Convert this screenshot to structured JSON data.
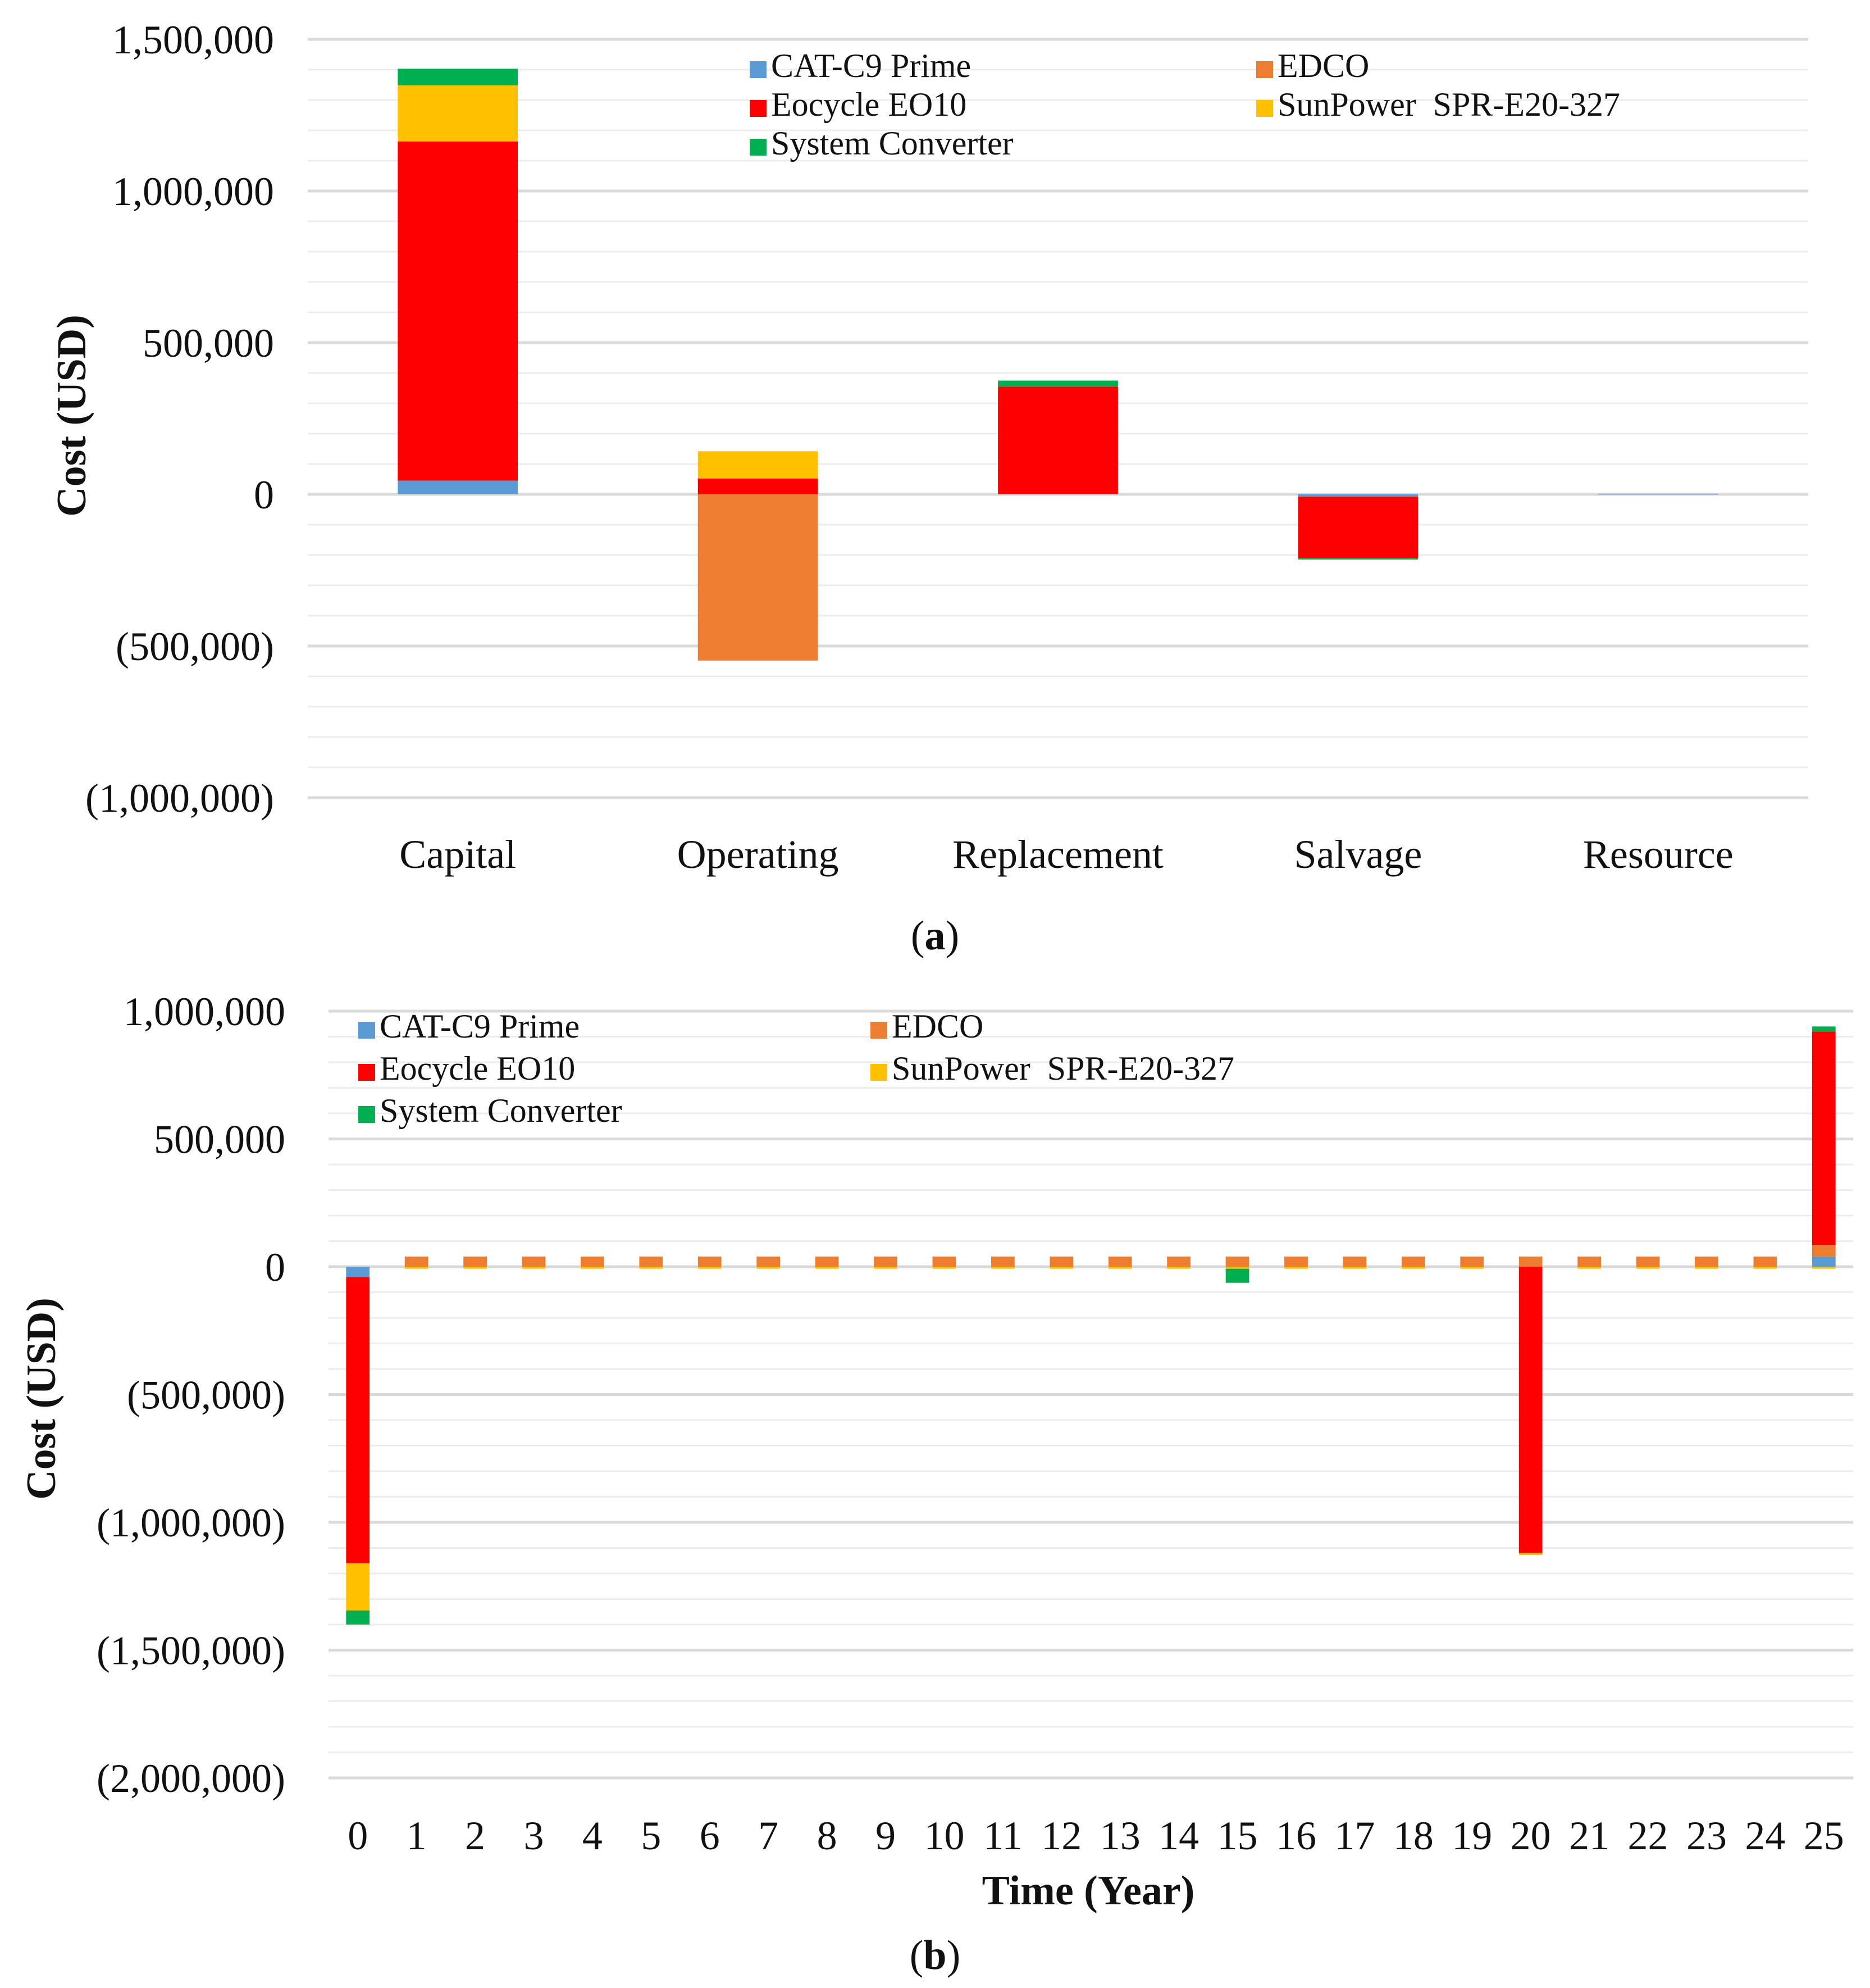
{
  "colors": {
    "CAT-C9 Prime": "#5b9bd5",
    "EDCO": "#ed7d31",
    "Eocycle EO10": "#ff0000",
    "SunPower  SPR-E20-327": "#ffc000",
    "System Converter": "#00b050",
    "gridline": "#d9d9d9",
    "minor_gridline": "#ececec"
  },
  "chart_data": [
    {
      "id": "a",
      "type": "bar",
      "stacked": true,
      "label_open": "(",
      "label_letter": "a",
      "label_close": ")",
      "ylabel": "Cost (USD)",
      "xlabel": "",
      "ylim": [
        -1000000,
        1500000
      ],
      "major_step": 500000,
      "minor_step": 100000,
      "tick_labels": [
        "(1,000,000)",
        "(500,000)",
        "0",
        "500,000",
        "1,000,000",
        "1,500,000"
      ],
      "legend_columns": 2,
      "categories": [
        "Capital",
        "Operating",
        "Replacement",
        "Salvage",
        "Resource"
      ],
      "series": [
        {
          "name": "CAT-C9 Prime",
          "values": [
            45000,
            0,
            0,
            -8000,
            2000
          ]
        },
        {
          "name": "EDCO",
          "values": [
            0,
            -548000,
            0,
            0,
            0
          ]
        },
        {
          "name": "Eocycle EO10",
          "values": [
            1118000,
            52000,
            355000,
            -202000,
            0
          ]
        },
        {
          "name": "SunPower  SPR-E20-327",
          "values": [
            185000,
            90000,
            0,
            0,
            0
          ]
        },
        {
          "name": "System Converter",
          "values": [
            55000,
            0,
            20000,
            -5000,
            0
          ]
        }
      ]
    },
    {
      "id": "b",
      "type": "bar",
      "stacked": true,
      "label_open": "(",
      "label_letter": "b",
      "label_close": ")",
      "ylabel": "Cost (USD)",
      "xlabel": "Time (Year)",
      "ylim": [
        -2000000,
        1000000
      ],
      "major_step": 500000,
      "minor_step": 100000,
      "tick_labels": [
        "(2,000,000)",
        "(1,500,000)",
        "(1,000,000)",
        "(500,000)",
        "0",
        "500,000",
        "1,000,000"
      ],
      "legend_columns": 2,
      "categories": [
        "0",
        "1",
        "2",
        "3",
        "4",
        "5",
        "6",
        "7",
        "8",
        "9",
        "10",
        "11",
        "12",
        "13",
        "14",
        "15",
        "16",
        "17",
        "18",
        "19",
        "20",
        "21",
        "22",
        "23",
        "24",
        "25"
      ],
      "series": [
        {
          "name": "CAT-C9 Prime",
          "values": [
            -40000,
            0,
            0,
            0,
            0,
            0,
            0,
            0,
            0,
            0,
            0,
            0,
            0,
            0,
            0,
            0,
            0,
            0,
            0,
            0,
            0,
            0,
            0,
            0,
            0,
            40000
          ]
        },
        {
          "name": "EDCO",
          "values": [
            0,
            40000,
            40000,
            40000,
            40000,
            40000,
            40000,
            40000,
            40000,
            40000,
            40000,
            40000,
            40000,
            40000,
            40000,
            40000,
            40000,
            40000,
            40000,
            40000,
            40000,
            40000,
            40000,
            40000,
            40000,
            45000
          ]
        },
        {
          "name": "Eocycle EO10",
          "values": [
            -1120000,
            0,
            0,
            0,
            0,
            0,
            0,
            0,
            0,
            0,
            0,
            0,
            0,
            0,
            0,
            0,
            0,
            0,
            0,
            0,
            -1120000,
            0,
            0,
            0,
            0,
            835000
          ]
        },
        {
          "name": "SunPower  SPR-E20-327",
          "values": [
            -185000,
            -8000,
            -8000,
            -8000,
            -8000,
            -8000,
            -8000,
            -8000,
            -8000,
            -8000,
            -8000,
            -8000,
            -8000,
            -8000,
            -8000,
            -8000,
            -8000,
            -8000,
            -8000,
            -8000,
            -8000,
            -8000,
            -8000,
            -8000,
            -8000,
            -8000
          ]
        },
        {
          "name": "System Converter",
          "values": [
            -55000,
            0,
            0,
            0,
            0,
            0,
            0,
            0,
            0,
            0,
            0,
            0,
            0,
            0,
            0,
            -55000,
            0,
            0,
            0,
            0,
            0,
            0,
            0,
            0,
            0,
            20000
          ]
        }
      ]
    }
  ]
}
